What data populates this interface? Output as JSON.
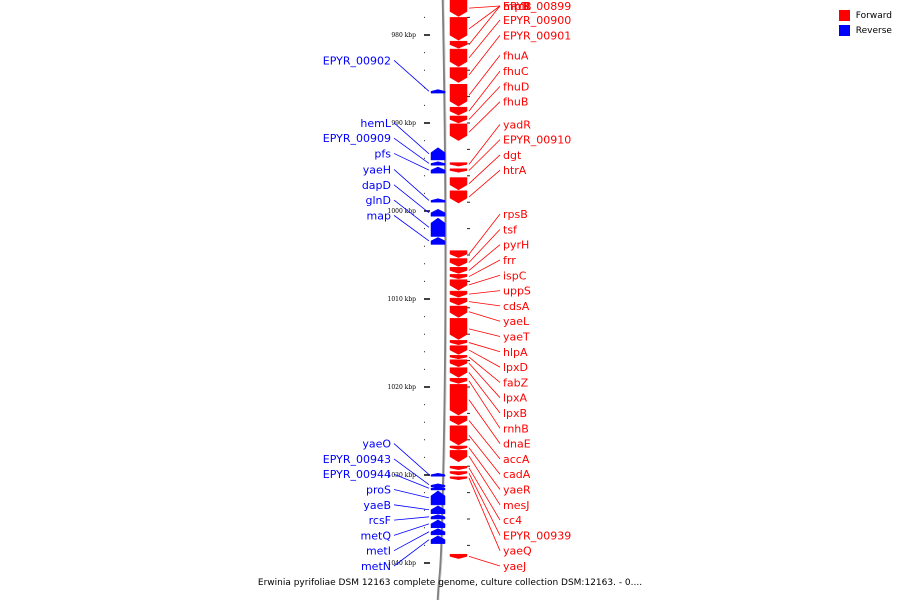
{
  "colors": {
    "forward": "#ff0000",
    "reverse": "#0000ff",
    "axis": "#808080"
  },
  "legend": [
    {
      "label": "Forward",
      "color": "#ff0000"
    },
    {
      "label": "Reverse",
      "color": "#0000ff"
    }
  ],
  "caption": "Erwinia pyrifoliae DSM 12163 complete genome, culture collection DSM:12163. - 0....",
  "scale_ticks": [
    {
      "label": "980 kbp",
      "kbp": 980
    },
    {
      "label": "990 kbp",
      "kbp": 990
    },
    {
      "label": "1000 kbp",
      "kbp": 1000
    },
    {
      "label": "1010 kbp",
      "kbp": 1010
    },
    {
      "label": "1020 kbp",
      "kbp": 1020
    },
    {
      "label": "1030 kbp",
      "kbp": 1030
    },
    {
      "label": "1040 kbp",
      "kbp": 1040
    }
  ],
  "forward_genes": [
    {
      "name": "hrpB",
      "start_kbp": 976.0,
      "end_kbp": 977.9
    },
    {
      "name": "mrcB",
      "start_kbp": 978.0,
      "end_kbp": 980.6
    },
    {
      "name": "EPYR_00899",
      "start_kbp": 980.7,
      "end_kbp": 981.5
    },
    {
      "name": "EPYR_00900",
      "start_kbp": 981.6,
      "end_kbp": 983.6
    },
    {
      "name": "EPYR_00901",
      "start_kbp": 983.7,
      "end_kbp": 985.4
    },
    {
      "name": "fhuA",
      "start_kbp": 985.6,
      "end_kbp": 988.1
    },
    {
      "name": "fhuC",
      "start_kbp": 988.2,
      "end_kbp": 989.1
    },
    {
      "name": "fhuD",
      "start_kbp": 989.2,
      "end_kbp": 990.0
    },
    {
      "name": "fhuB",
      "start_kbp": 990.1,
      "end_kbp": 992.0
    },
    {
      "name": "yadR",
      "start_kbp": 994.5,
      "end_kbp": 994.9
    },
    {
      "name": "EPYR_00910",
      "start_kbp": 995.2,
      "end_kbp": 995.6
    },
    {
      "name": "dgt",
      "start_kbp": 996.2,
      "end_kbp": 997.6
    },
    {
      "name": "htrA",
      "start_kbp": 997.7,
      "end_kbp": 999.1
    },
    {
      "name": "rpsB",
      "start_kbp": 1004.5,
      "end_kbp": 1005.3
    },
    {
      "name": "tsf",
      "start_kbp": 1005.4,
      "end_kbp": 1006.3
    },
    {
      "name": "pyrH",
      "start_kbp": 1006.4,
      "end_kbp": 1007.1
    },
    {
      "name": "frr",
      "start_kbp": 1007.2,
      "end_kbp": 1007.7
    },
    {
      "name": "ispC",
      "start_kbp": 1007.8,
      "end_kbp": 1009.0
    },
    {
      "name": "uppS",
      "start_kbp": 1009.1,
      "end_kbp": 1009.8
    },
    {
      "name": "cdsA",
      "start_kbp": 1009.9,
      "end_kbp": 1010.7
    },
    {
      "name": "yaeL",
      "start_kbp": 1010.8,
      "end_kbp": 1012.1
    },
    {
      "name": "yaeT",
      "start_kbp": 1012.2,
      "end_kbp": 1014.6
    },
    {
      "name": "hlpA",
      "start_kbp": 1014.7,
      "end_kbp": 1015.2
    },
    {
      "name": "lpxD",
      "start_kbp": 1015.3,
      "end_kbp": 1016.3
    },
    {
      "name": "fabZ",
      "start_kbp": 1016.4,
      "end_kbp": 1016.8
    },
    {
      "name": "lpxA",
      "start_kbp": 1016.9,
      "end_kbp": 1017.7
    },
    {
      "name": "lpxB",
      "start_kbp": 1017.8,
      "end_kbp": 1018.9
    },
    {
      "name": "rnhB",
      "start_kbp": 1019.0,
      "end_kbp": 1019.6
    },
    {
      "name": "dnaE",
      "start_kbp": 1019.7,
      "end_kbp": 1023.2
    },
    {
      "name": "accA",
      "start_kbp": 1023.3,
      "end_kbp": 1024.3
    },
    {
      "name": "cadA",
      "start_kbp": 1024.4,
      "end_kbp": 1026.6
    },
    {
      "name": "yaeR",
      "start_kbp": 1026.7,
      "end_kbp": 1027.1
    },
    {
      "name": "mesJ",
      "start_kbp": 1027.2,
      "end_kbp": 1028.5
    },
    {
      "name": "cc4",
      "start_kbp": 1029.0,
      "end_kbp": 1029.4
    },
    {
      "name": "EPYR_00939",
      "start_kbp": 1029.6,
      "end_kbp": 1030.0
    },
    {
      "name": "yaeQ",
      "start_kbp": 1030.2,
      "end_kbp": 1030.5
    },
    {
      "name": "yaeJ",
      "start_kbp": 1039.0,
      "end_kbp": 1039.5
    }
  ],
  "reverse_genes": [
    {
      "name": "EPYR_00902",
      "start_kbp": 986.2,
      "end_kbp": 986.6
    },
    {
      "name": "hemL",
      "start_kbp": 992.8,
      "end_kbp": 994.2
    },
    {
      "name": "EPYR_00909",
      "start_kbp": 994.4,
      "end_kbp": 994.8
    },
    {
      "name": "pfs",
      "start_kbp": 995.0,
      "end_kbp": 995.7
    },
    {
      "name": "yaeH",
      "start_kbp": 998.6,
      "end_kbp": 999.0
    },
    {
      "name": "dapD",
      "start_kbp": 999.8,
      "end_kbp": 1000.6
    },
    {
      "name": "glnD",
      "start_kbp": 1000.8,
      "end_kbp": 1002.9
    },
    {
      "name": "map",
      "start_kbp": 1003.0,
      "end_kbp": 1003.8
    },
    {
      "name": "yaeO",
      "start_kbp": 1029.8,
      "end_kbp": 1030.1
    },
    {
      "name": "EPYR_00943",
      "start_kbp": 1031.0,
      "end_kbp": 1031.2
    },
    {
      "name": "EPYR_00944",
      "start_kbp": 1031.3,
      "end_kbp": 1031.7
    },
    {
      "name": "proS",
      "start_kbp": 1031.8,
      "end_kbp": 1033.4
    },
    {
      "name": "yaeB",
      "start_kbp": 1033.5,
      "end_kbp": 1034.4
    },
    {
      "name": "rcsF",
      "start_kbp": 1034.5,
      "end_kbp": 1035.0
    },
    {
      "name": "metQ",
      "start_kbp": 1035.1,
      "end_kbp": 1036.0
    },
    {
      "name": "metI",
      "start_kbp": 1036.1,
      "end_kbp": 1036.8
    },
    {
      "name": "metN",
      "start_kbp": 1036.9,
      "end_kbp": 1037.8
    }
  ]
}
